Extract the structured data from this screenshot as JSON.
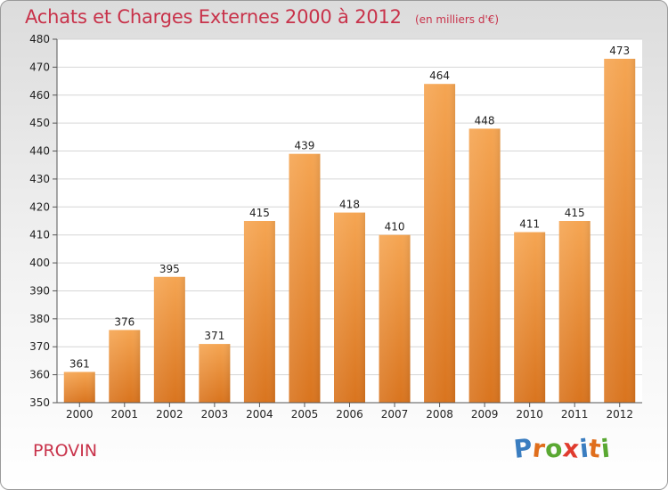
{
  "chart_data": {
    "type": "bar",
    "title": "Achats et Charges Externes 2000 à 2012",
    "unit_note": "(en milliers d'€)",
    "categories": [
      "2000",
      "2001",
      "2002",
      "2003",
      "2004",
      "2005",
      "2006",
      "2007",
      "2008",
      "2009",
      "2010",
      "2011",
      "2012"
    ],
    "values": [
      361,
      376,
      395,
      371,
      415,
      439,
      418,
      410,
      464,
      448,
      411,
      415,
      473
    ],
    "ylim": [
      350,
      480
    ],
    "yticks": [
      350,
      360,
      370,
      380,
      390,
      400,
      410,
      420,
      430,
      440,
      450,
      460,
      470,
      480
    ],
    "grid": true,
    "bar_color_top": "#f5a552",
    "bar_color_bottom": "#d9741e"
  },
  "footer": {
    "commune": "PROVIN",
    "brand": "Proxiti"
  },
  "colors": {
    "title": "#c8324a",
    "brand_letters": [
      "#3a7dc0",
      "#e06e1c",
      "#5aa832",
      "#e03b2e",
      "#3a7dc0",
      "#e06e1c",
      "#5aa832"
    ]
  }
}
